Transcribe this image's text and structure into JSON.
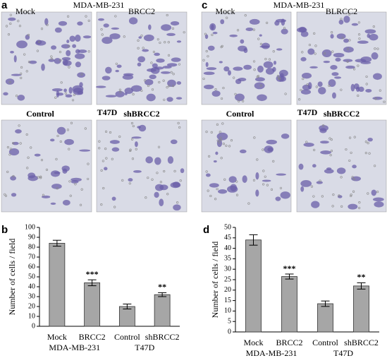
{
  "photo_panels": [
    {
      "letter": "a",
      "group_top": "MDA-MB-231",
      "group_bottom": "T47D",
      "images": [
        "Mock",
        "BRCC2",
        "Control",
        "shBRCC2"
      ]
    },
    {
      "letter": "c",
      "group_top": "MDA-MB-231",
      "group_bottom": "T47D",
      "images": [
        "Mock",
        "BLRCC2",
        "Control",
        "shBRCC2"
      ]
    }
  ],
  "chart_data": [
    {
      "type": "bar",
      "letter": "b",
      "ylabel": "Number of cells / field",
      "categories": [
        "Mock",
        "BRCC2",
        "Control",
        "shBRCC2"
      ],
      "groups": [
        "MDA-MB-231",
        "T47D"
      ],
      "values": [
        84,
        44,
        20,
        32
      ],
      "errors": [
        3,
        3,
        2.5,
        2
      ],
      "significance": [
        null,
        "***",
        null,
        "**"
      ],
      "color": "#a6a6a6",
      "ylim": [
        0,
        100
      ],
      "yticks": [
        0,
        10,
        20,
        30,
        40,
        50,
        60,
        70,
        80,
        90,
        100
      ]
    },
    {
      "type": "bar",
      "letter": "d",
      "ylabel": "Number of cells / field",
      "categories": [
        "Mock",
        "BRCC2",
        "Control",
        "shBRCC2"
      ],
      "groups": [
        "MDA-MB-231",
        "T47D"
      ],
      "values": [
        44,
        26.5,
        13.5,
        22
      ],
      "errors": [
        2.5,
        1.2,
        1.3,
        1.5
      ],
      "significance": [
        null,
        "***",
        null,
        "**"
      ],
      "color": "#a6a6a6",
      "ylim": [
        0,
        50
      ],
      "yticks": [
        0,
        5,
        10,
        15,
        20,
        25,
        30,
        35,
        40,
        45,
        50
      ]
    }
  ]
}
